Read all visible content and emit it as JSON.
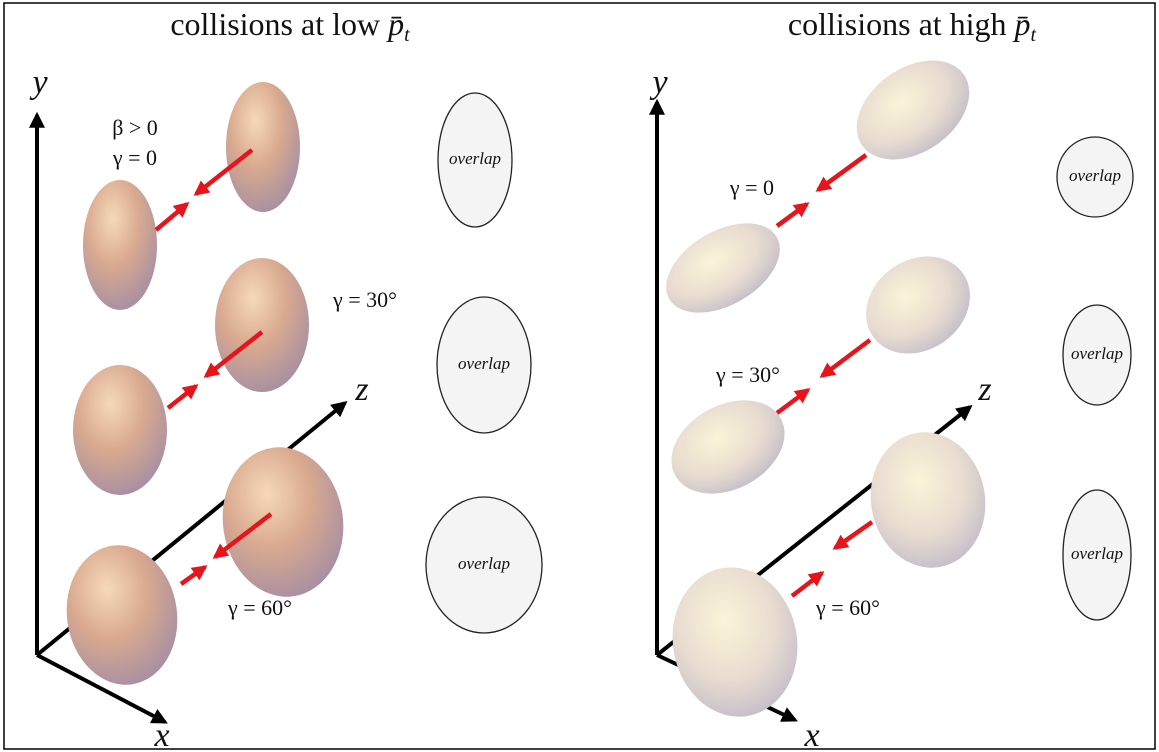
{
  "panels": [
    {
      "title": {
        "text": "collisions at low",
        "symbol": "p̄",
        "subscript": "t"
      },
      "axes": {
        "y": "y",
        "z": "z",
        "x": "x"
      },
      "labels": [
        "β > 0",
        "γ = 0",
        "γ = 30°",
        "γ = 60°"
      ],
      "overlaps": [
        "overlap",
        "overlap",
        "overlap"
      ]
    },
    {
      "title": {
        "text": "collisions at high",
        "symbol": "p̄",
        "subscript": "t"
      },
      "axes": {
        "y": "y",
        "z": "z",
        "x": "x"
      },
      "labels": [
        "γ = 0",
        "γ = 30°",
        "γ = 60°"
      ],
      "overlaps": [
        "overlap",
        "overlap",
        "overlap"
      ]
    }
  ]
}
